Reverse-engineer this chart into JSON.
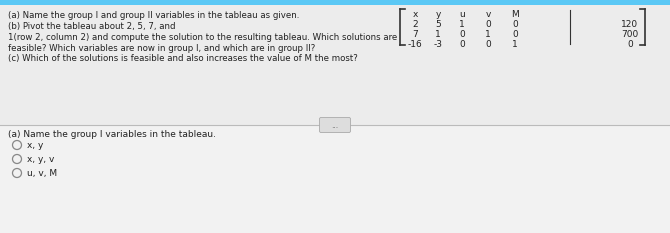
{
  "top_bg": "#e8e8e8",
  "bottom_bg": "#d8d8d8",
  "white_panel_bg": "#f5f5f5",
  "question_text_lines": [
    "(a) Name the group I and group II variables in the tableau as given.",
    "(b) Pivot the tableau about 2, 5, 7, and",
    "1(row 2, column 2) and compute the solution to the resulting tableau. Which solutions are",
    "feasible? Which variables are now in group I, and which are in group II?",
    "(c) Which of the solutions is feasible and also increases the value of M the most?"
  ],
  "matrix_headers": [
    "x",
    "y",
    "u",
    "v",
    "M"
  ],
  "matrix_rows": [
    [
      "2",
      "5",
      "1",
      "0",
      "0"
    ],
    [
      "7",
      "1",
      "0",
      "1",
      "0"
    ],
    [
      "-16",
      "-3",
      "0",
      "0",
      "1"
    ]
  ],
  "matrix_rhs": [
    "120",
    "700",
    "0"
  ],
  "bottom_question": "(a) Name the group I variables in the tableau.",
  "options": [
    "x, y",
    "x, y, v",
    "u, v, M"
  ],
  "dots_button_text": "..."
}
